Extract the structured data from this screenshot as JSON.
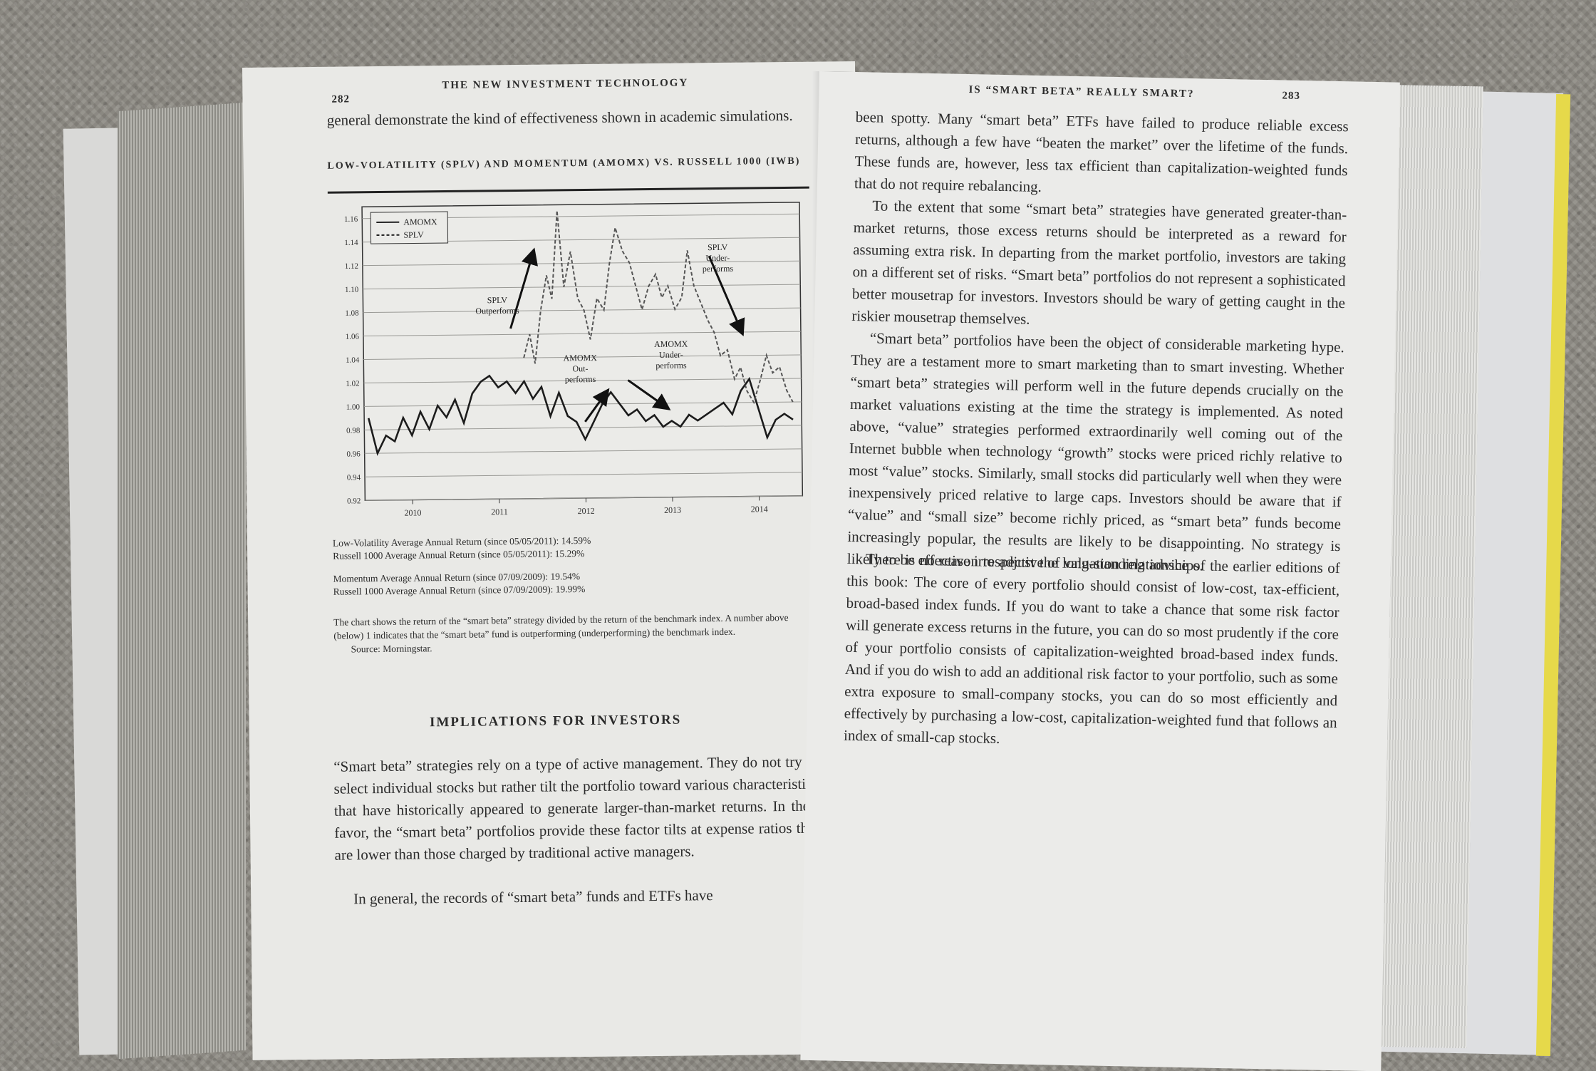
{
  "left_page": {
    "page_number": "282",
    "running_head": "THE NEW INVESTMENT TECHNOLOGY",
    "opening_text": "general demonstrate the kind of effectiveness shown in academic simulations.",
    "chart_title": "LOW-VOLATILITY (SPLV) AND MOMENTUM (AMOMX) VS. RUSSELL 1000 (IWB)",
    "notes": [
      "Low-Volatility Average Annual Return (since 05/05/2011): 14.59%",
      "Russell 1000 Average Annual Return (since 05/05/2011): 15.29%",
      "Momentum Average Annual Return (since 07/09/2009): 19.54%",
      "Russell 1000 Average Annual Return (since 07/09/2009): 19.99%"
    ],
    "caption": "The chart shows the return of the “smart beta” strategy divided by the return of the benchmark index. A number above (below) 1 indicates that the “smart beta” fund is outperforming (underperforming) the benchmark index.",
    "source": "Source: Morningstar.",
    "section_heading": "IMPLICATIONS FOR INVESTORS",
    "para1": "“Smart beta” strategies rely on a type of active management. They do not try to select individual stocks but rather tilt the portfolio toward various characteristics that have historically appeared to generate larger-than-market returns. In their favor, the “smart beta” portfolios provide these factor tilts at expense ratios that are lower than those charged by traditional active managers.",
    "para2": "In general, the records of “smart beta” funds and ETFs have"
  },
  "right_page": {
    "page_number": "283",
    "running_head": "IS “SMART BETA” REALLY SMART?",
    "para1": "been spotty. Many “smart beta” ETFs have failed to produce reliable excess returns, although a few have “beaten the market” over the lifetime of the funds. These funds are, however, less tax efficient than capitalization-weighted funds that do not require rebalancing.",
    "para2": "To the extent that some “smart beta” strategies have generated greater-than-market returns, those excess returns should be interpreted as a reward for assuming extra risk. In departing from the market portfolio, investors are taking on a different set of risks. “Smart beta” portfolios do not represent a sophisticated better mousetrap for investors. Investors should be wary of getting caught in the riskier mousetrap themselves.",
    "para3": "“Smart beta” portfolios have been the object of considerable marketing hype. They are a testament more to smart marketing than to smart investing. Whether “smart beta” strategies will perform well in the future depends crucially on the market valuations existing at the time the strategy is implemented. As noted above, “value” strategies performed extraordinarily well coming out of the Internet bubble when technology “growth” stocks were priced richly relative to most “value” stocks. Similarly, small stocks did particularly well when they were inexpensively priced relative to large caps. Investors should be aware that if “value” and “small size” become richly priced, as “smart beta” funds become increasingly popular, the results are likely to be disappointing. No strategy is likely to be effective irrespective of valuation relationships.",
    "para4": "There is no reason to adjust the long-standing advice of the earlier editions of this book: The core of every portfolio should consist of low-cost, tax-efficient, broad-based index funds. If you do want to take a chance that some risk factor will generate excess returns in the future, you can do so most prudently if the core of your portfolio consists of capitalization-weighted broad-based index funds. And if you do wish to add an additional risk factor to your portfolio, such as some extra exposure to small-company stocks, you can do so most efficiently and effectively by purchasing a low-cost, capitalization-weighted fund that follows an index of small-cap stocks."
  },
  "chart_data": {
    "type": "line",
    "x_ticks": [
      "2010",
      "2011",
      "2012",
      "2013",
      "2014"
    ],
    "y_ticks": [
      "0.92",
      "0.94",
      "0.96",
      "0.98",
      "1.00",
      "1.02",
      "1.04",
      "1.06",
      "1.08",
      "1.10",
      "1.12",
      "1.14",
      "1.16"
    ],
    "ylim": [
      0.92,
      1.17
    ],
    "xlim": [
      2009.5,
      2014.55
    ],
    "grid": true,
    "legend_position": "top-left",
    "series": [
      {
        "name": "AMOMX",
        "style": "solid",
        "points": [
          [
            2009.55,
            0.99
          ],
          [
            2009.65,
            0.96
          ],
          [
            2009.75,
            0.975
          ],
          [
            2009.85,
            0.97
          ],
          [
            2009.95,
            0.99
          ],
          [
            2010.05,
            0.975
          ],
          [
            2010.15,
            0.995
          ],
          [
            2010.25,
            0.98
          ],
          [
            2010.35,
            1.0
          ],
          [
            2010.45,
            0.99
          ],
          [
            2010.55,
            1.005
          ],
          [
            2010.65,
            0.985
          ],
          [
            2010.75,
            1.01
          ],
          [
            2010.85,
            1.02
          ],
          [
            2010.95,
            1.025
          ],
          [
            2011.05,
            1.015
          ],
          [
            2011.15,
            1.02
          ],
          [
            2011.25,
            1.01
          ],
          [
            2011.35,
            1.02
          ],
          [
            2011.45,
            1.005
          ],
          [
            2011.55,
            1.015
          ],
          [
            2011.65,
            0.99
          ],
          [
            2011.75,
            1.01
          ],
          [
            2011.85,
            0.99
          ],
          [
            2011.95,
            0.985
          ],
          [
            2012.05,
            0.97
          ],
          [
            2012.15,
            0.985
          ],
          [
            2012.25,
            1.0
          ],
          [
            2012.35,
            1.01
          ],
          [
            2012.45,
            1.0
          ],
          [
            2012.55,
            0.99
          ],
          [
            2012.65,
            0.995
          ],
          [
            2012.75,
            0.985
          ],
          [
            2012.85,
            0.99
          ],
          [
            2012.95,
            0.98
          ],
          [
            2013.05,
            0.985
          ],
          [
            2013.15,
            0.98
          ],
          [
            2013.25,
            0.99
          ],
          [
            2013.35,
            0.985
          ],
          [
            2013.45,
            0.99
          ],
          [
            2013.55,
            0.995
          ],
          [
            2013.65,
            1.0
          ],
          [
            2013.75,
            0.99
          ],
          [
            2013.85,
            1.01
          ],
          [
            2013.95,
            1.02
          ],
          [
            2014.05,
            0.995
          ],
          [
            2014.15,
            0.97
          ],
          [
            2014.25,
            0.985
          ],
          [
            2014.35,
            0.99
          ],
          [
            2014.45,
            0.985
          ]
        ]
      },
      {
        "name": "SPLV",
        "style": "dashed",
        "points": [
          [
            2011.35,
            1.04
          ],
          [
            2011.42,
            1.06
          ],
          [
            2011.48,
            1.035
          ],
          [
            2011.55,
            1.08
          ],
          [
            2011.62,
            1.11
          ],
          [
            2011.68,
            1.09
          ],
          [
            2011.75,
            1.165
          ],
          [
            2011.82,
            1.1
          ],
          [
            2011.9,
            1.13
          ],
          [
            2011.98,
            1.09
          ],
          [
            2012.05,
            1.08
          ],
          [
            2012.12,
            1.055
          ],
          [
            2012.2,
            1.09
          ],
          [
            2012.28,
            1.08
          ],
          [
            2012.35,
            1.12
          ],
          [
            2012.42,
            1.15
          ],
          [
            2012.5,
            1.13
          ],
          [
            2012.58,
            1.12
          ],
          [
            2012.65,
            1.1
          ],
          [
            2012.72,
            1.08
          ],
          [
            2012.8,
            1.1
          ],
          [
            2012.88,
            1.11
          ],
          [
            2012.95,
            1.09
          ],
          [
            2013.02,
            1.1
          ],
          [
            2013.1,
            1.08
          ],
          [
            2013.18,
            1.09
          ],
          [
            2013.25,
            1.13
          ],
          [
            2013.32,
            1.1
          ],
          [
            2013.4,
            1.085
          ],
          [
            2013.48,
            1.07
          ],
          [
            2013.55,
            1.06
          ],
          [
            2013.62,
            1.04
          ],
          [
            2013.7,
            1.045
          ],
          [
            2013.78,
            1.02
          ],
          [
            2013.85,
            1.03
          ],
          [
            2013.92,
            1.01
          ],
          [
            2014.0,
            1.0
          ],
          [
            2014.08,
            1.02
          ],
          [
            2014.15,
            1.04
          ],
          [
            2014.22,
            1.025
          ],
          [
            2014.3,
            1.03
          ],
          [
            2014.38,
            1.01
          ],
          [
            2014.45,
            1.0
          ]
        ]
      }
    ],
    "annotations": [
      {
        "text_lines": [
          "SPLV",
          "Outperforms"
        ],
        "x": 2011.05,
        "y": 1.087
      },
      {
        "text_lines": [
          "SPLV",
          "Under-",
          "performs"
        ],
        "x": 2013.6,
        "y": 1.13
      },
      {
        "text_lines": [
          "AMOMX",
          "Out-",
          "performs"
        ],
        "x": 2012.0,
        "y": 1.037
      },
      {
        "text_lines": [
          "AMOMX",
          "Under-",
          "performs"
        ],
        "x": 2013.05,
        "y": 1.048
      }
    ]
  }
}
